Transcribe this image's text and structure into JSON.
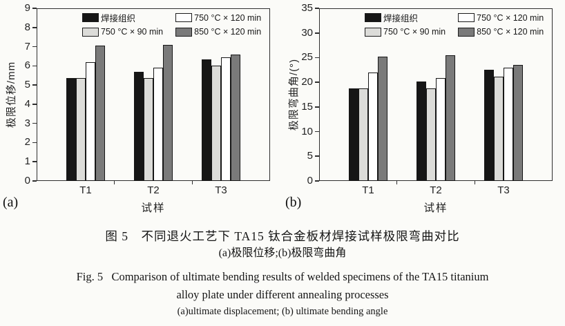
{
  "figure": {
    "caption": {
      "zh_title": "图 5　不同退火工艺下 TA15 钛合金板材焊接试样极限弯曲对比",
      "zh_sub": "(a)极限位移;(b)极限弯曲角",
      "en_title_line1": "Fig. 5   Comparison of ultimate bending results of welded specimens of the TA15 titanium",
      "en_title_line2": "alloy plate under different annealing processes",
      "en_sub": "(a)ultimate displacement; (b) ultimate bending angle"
    }
  },
  "colors": {
    "axis": "#2e2e2e",
    "bar_black": "#161616",
    "bar_light_gray": "#dcdcd9",
    "bar_white": "#fefefe",
    "bar_dark_gray": "#7a7a7a"
  },
  "chart_data": [
    {
      "type": "bar",
      "panel_label": "(a)",
      "title": "",
      "xlabel": "试样",
      "ylabel": "极限位移/mm",
      "ylim": [
        0,
        9
      ],
      "ystep": 1,
      "grid": false,
      "legend_position": "top-inside",
      "categories": [
        "T1",
        "T2",
        "T3"
      ],
      "series": [
        {
          "name": "焊接组织",
          "color": "#161616",
          "values": [
            5.35,
            5.7,
            6.35
          ]
        },
        {
          "name": "750 °C × 90 min",
          "color": "#dcdcd9",
          "values": [
            5.35,
            5.35,
            6.0
          ]
        },
        {
          "name": "750 °C × 120 min",
          "color": "#fefefe",
          "values": [
            6.2,
            5.9,
            6.45
          ]
        },
        {
          "name": "850 °C × 120 min",
          "color": "#7a7a7a",
          "values": [
            7.05,
            7.1,
            6.6
          ]
        }
      ],
      "legend_display_order": [
        0,
        2,
        1,
        3
      ]
    },
    {
      "type": "bar",
      "panel_label": "(b)",
      "title": "",
      "xlabel": "试样",
      "ylabel": "极限弯曲角/(°)",
      "ylim": [
        0,
        35
      ],
      "ystep": 5,
      "grid": false,
      "legend_position": "top-inside",
      "categories": [
        "T1",
        "T2",
        "T3"
      ],
      "series": [
        {
          "name": "焊接组织",
          "color": "#161616",
          "values": [
            18.8,
            20.1,
            22.6
          ]
        },
        {
          "name": "750 °C × 90 min",
          "color": "#dcdcd9",
          "values": [
            18.8,
            18.8,
            21.2
          ]
        },
        {
          "name": "750 °C × 120 min",
          "color": "#fefefe",
          "values": [
            22.0,
            20.8,
            23.0
          ]
        },
        {
          "name": "850 °C × 120 min",
          "color": "#7a7a7a",
          "values": [
            25.2,
            25.5,
            23.5
          ]
        }
      ],
      "legend_display_order": [
        0,
        2,
        1,
        3
      ]
    }
  ]
}
